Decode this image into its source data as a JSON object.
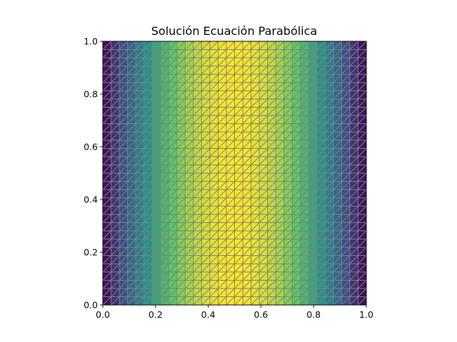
{
  "chart_data": {
    "type": "heatmap",
    "title": "Solución Ecuación Parabólica",
    "xlabel": "",
    "ylabel": "",
    "xlim": [
      0,
      1
    ],
    "ylim": [
      0,
      1
    ],
    "x_ticks": [
      "0.0",
      "0.2",
      "0.4",
      "0.6",
      "0.8",
      "1.0"
    ],
    "y_ticks": [
      "0.0",
      "0.2",
      "0.4",
      "0.6",
      "0.8",
      "1.0"
    ],
    "mesh": {
      "divisions_x": 32,
      "divisions_y": 32,
      "element": "triangle",
      "diagonal": "lower-left to upper-right"
    },
    "field": "u(x) = sin(pi * x), constant in y",
    "value_range": [
      0,
      1
    ],
    "colormap": "viridis",
    "colormap_stops": [
      "#440154",
      "#3b528b",
      "#21918c",
      "#5ec962",
      "#fde725"
    ],
    "edge_color": "#808080",
    "grid": false,
    "legend": "none"
  }
}
